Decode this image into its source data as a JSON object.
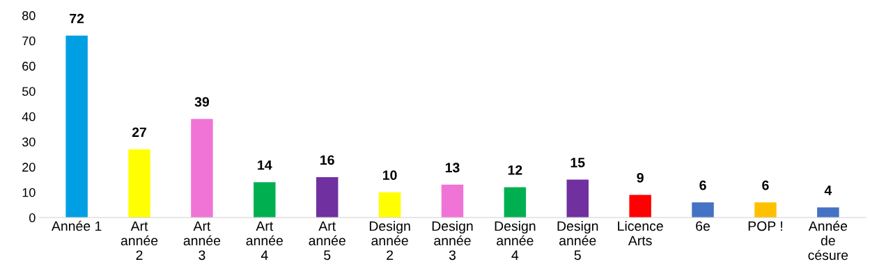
{
  "chart_data": {
    "type": "bar",
    "categories": [
      "Année 1",
      "Art\nannée\n2",
      "Art\nannée\n3",
      "Art\nannée\n4",
      "Art\nannée\n5",
      "Design\nannée\n2",
      "Design\nannée\n3",
      "Design\nannée\n4",
      "Design\nannée\n5",
      "Licence\nArts",
      "6e",
      "POP !",
      "Année\nde\ncésure"
    ],
    "values": [
      72,
      27,
      39,
      14,
      16,
      10,
      13,
      12,
      15,
      9,
      6,
      6,
      4
    ],
    "colors": [
      "#009fe3",
      "#ffff00",
      "#ef74d6",
      "#00b050",
      "#7030a0",
      "#ffff00",
      "#ef74d6",
      "#00b050",
      "#7030a0",
      "#ff0000",
      "#4472c4",
      "#ffc000",
      "#4472c4"
    ],
    "ylim": [
      0,
      80
    ],
    "yticks": [
      0,
      10,
      20,
      30,
      40,
      50,
      60,
      70,
      80
    ],
    "data_labels": true,
    "grid": false,
    "legend": false
  }
}
